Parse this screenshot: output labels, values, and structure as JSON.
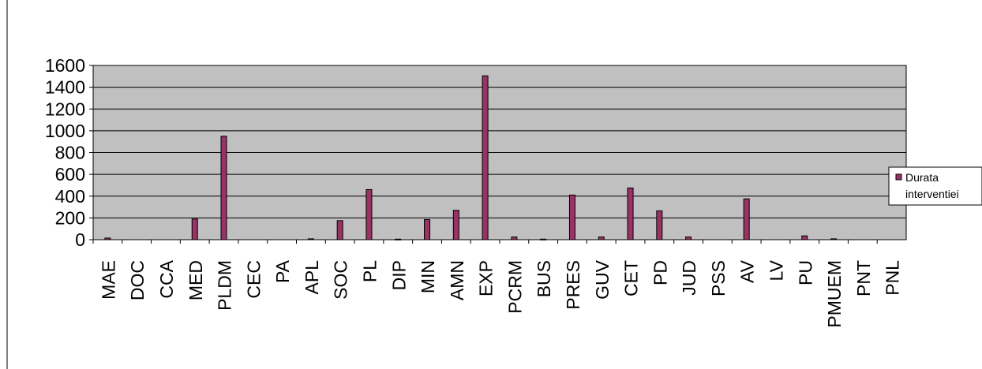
{
  "chart_data": {
    "type": "bar",
    "categories": [
      "MAE",
      "DOC",
      "CCA",
      "MED",
      "PLDM",
      "CEC",
      "PA",
      "APL",
      "SOC",
      "PL",
      "DIP",
      "MIN",
      "AMN",
      "EXP",
      "PCRM",
      "BUS",
      "PRES",
      "GUV",
      "CET",
      "PD",
      "JUD",
      "PSS",
      "AV",
      "LV",
      "PU",
      "PMUEM",
      "PNT",
      "PNL"
    ],
    "series": [
      {
        "name": "Durata interventiei",
        "values": [
          15,
          0,
          0,
          190,
          950,
          0,
          0,
          8,
          175,
          460,
          5,
          185,
          270,
          1505,
          25,
          5,
          410,
          25,
          475,
          265,
          25,
          0,
          375,
          0,
          35,
          8,
          0,
          0
        ]
      }
    ],
    "ylim": [
      0,
      1600
    ],
    "yticks": [
      "0",
      "200",
      "400",
      "600",
      "800",
      "1000",
      "1200",
      "1400",
      "1600"
    ],
    "grid": true,
    "legend": "right",
    "colors": {
      "bar": "#993366",
      "plot_bg": "#c0c0c0",
      "grid": "#000000"
    }
  }
}
